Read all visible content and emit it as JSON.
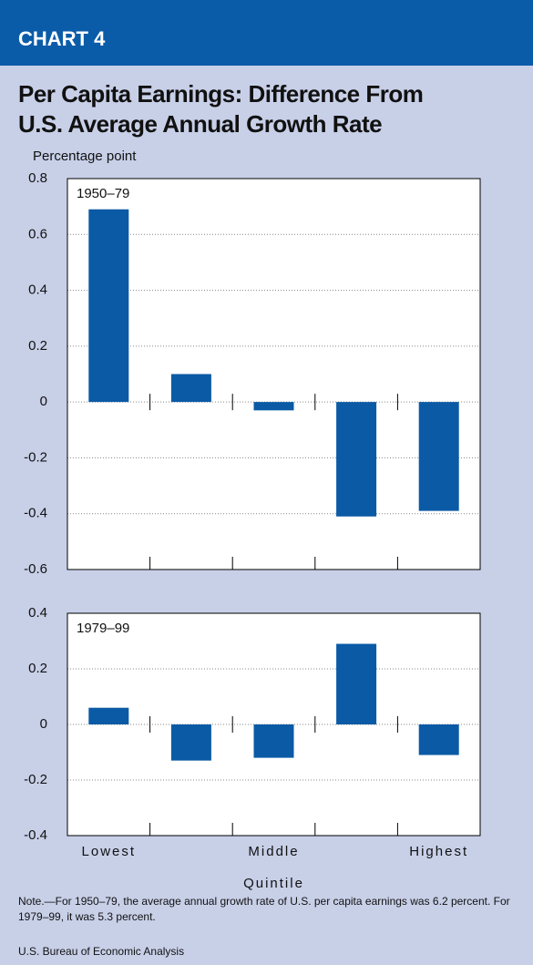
{
  "header": "CHART 4",
  "title": [
    "Per Capita Earnings: Difference From",
    "U.S. Average Annual Growth Rate"
  ],
  "note": "Note.—For 1950–79, the average annual growth rate of U.S. per capita earnings was 6.2 percent.  For 1979–99, it was 5.3 percent.",
  "source": "U.S. Bureau of Economic Analysis",
  "chart_data": [
    {
      "type": "bar",
      "ylabel": "Percentage point",
      "panel_label": "1950–79",
      "values": [
        0.69,
        0.1,
        -0.03,
        -0.41,
        -0.39
      ],
      "color": "#0b5aa5",
      "ylim": [
        -0.6,
        0.8
      ],
      "yticks": [
        -0.6,
        -0.4,
        -0.2,
        0,
        0.2,
        0.4,
        0.6,
        0.8
      ],
      "grid": true
    },
    {
      "type": "bar",
      "panel_label": "1979–99",
      "xlabel": "Quintile",
      "categories": [
        "Lowest",
        null,
        "Middle",
        null,
        "Highest"
      ],
      "values": [
        0.06,
        -0.13,
        -0.12,
        0.29,
        -0.11
      ],
      "color": "#0b5aa5",
      "ylim": [
        -0.4,
        0.4
      ],
      "yticks": [
        -0.4,
        -0.2,
        0,
        0.2,
        0.4
      ],
      "grid": true
    }
  ]
}
